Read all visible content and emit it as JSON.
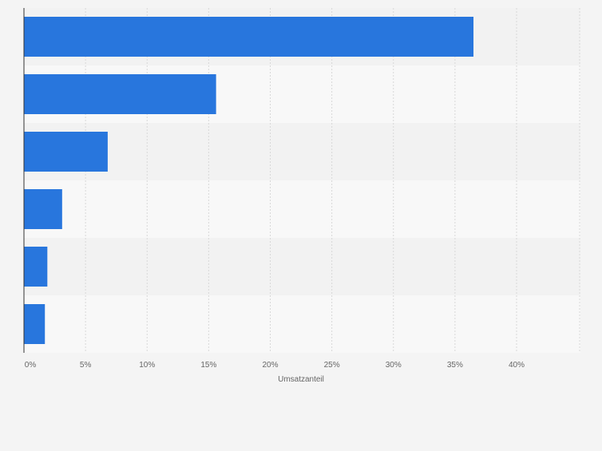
{
  "chart_data": {
    "type": "bar",
    "orientation": "horizontal",
    "categories": [
      "",
      "",
      "",
      "",
      "",
      ""
    ],
    "values": [
      36.5,
      15.6,
      6.8,
      3.1,
      1.9,
      1.7
    ],
    "xlabel": "Umsatzanteil",
    "ylabel": "",
    "xlim": [
      0,
      45
    ],
    "xticks": [
      0,
      5,
      10,
      15,
      20,
      25,
      30,
      35,
      40
    ],
    "tick_labels": [
      "0%",
      "5%",
      "10%",
      "15%",
      "20%",
      "25%",
      "30%",
      "35%",
      "40%"
    ],
    "grid": true,
    "bar_color": "#2876dd",
    "band_colors": [
      "#f2f2f2",
      "#f8f8f8"
    ]
  }
}
